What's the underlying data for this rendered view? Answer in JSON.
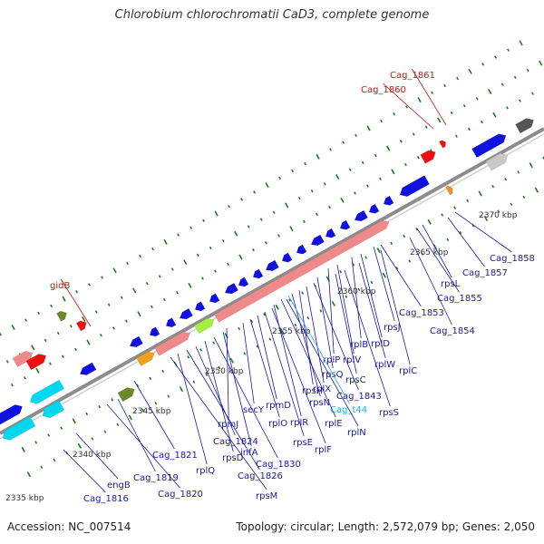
{
  "title": "Chlorobium chlorochromatii CaD3, complete genome",
  "footer": {
    "accession": "Accession: NC_007514",
    "summary": "Topology: circular; Length: 2,572,079 bp; Genes: 2,050"
  },
  "colors": {
    "backbone": "#8c8c8c",
    "gene_blue": "#1010e0",
    "label_blue": "#1a1aa0",
    "label_red": "#d01010",
    "label_cyan": "#2aa8e0",
    "tick_green": "#1f7a1f",
    "rna_pink": "#f08a8a"
  },
  "scale_labels": [
    "2335 kbp",
    "2340 kbp",
    "2345 kbp",
    "2350 kbp",
    "2355 kbp",
    "2360 kbp",
    "2365 kbp",
    "2370 kbp"
  ],
  "gene_labels": [
    "Cag_1861",
    "Cag_1860",
    "gidB",
    "Cag_1858",
    "Cag_1857",
    "Cag_1855",
    "rpsL",
    "Cag_1853",
    "Cag_1854",
    "rpsJ",
    "rplD",
    "rplB",
    "rplW",
    "rplC",
    "rplV",
    "rplP",
    "rpsS",
    "rpsC",
    "rpsQ",
    "Cag_1843",
    "rplX",
    "rpsH",
    "rpsN",
    "Cag_t44",
    "rplE",
    "rplN",
    "rplR",
    "rplF",
    "rpsE",
    "rpmD",
    "rplO",
    "secY",
    "rpmJ",
    "infA",
    "Cag_1830",
    "rpsD",
    "Cag_1824",
    "Cag_1826",
    "rplQ",
    "rpsM",
    "Cag_1821",
    "Cag_1819",
    "Cag_1820",
    "engB",
    "Cag_1816"
  ]
}
